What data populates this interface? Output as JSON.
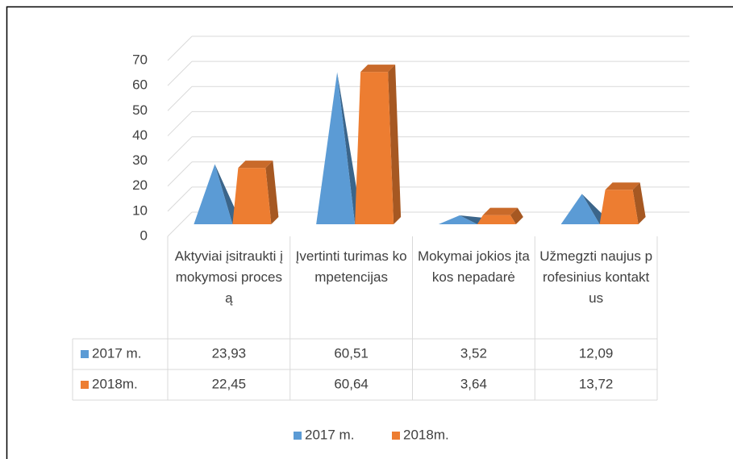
{
  "chart_data": {
    "type": "pyramid",
    "categories": [
      "Aktyviai įsitraukti į mokymosi procesą",
      "Įvertinti turimas kompetencijas",
      "Mokymai jokios įtakos nepadarė",
      "Užmegzti naujus profesinius kontaktus"
    ],
    "series": [
      {
        "name": "2017 m.",
        "color": "#5b9bd5",
        "values": [
          23.93,
          60.51,
          3.52,
          12.09
        ],
        "value_labels": [
          "23,93",
          "60,51",
          "3,52",
          "12,09"
        ]
      },
      {
        "name": "2018m.",
        "color": "#ed7d31",
        "values": [
          22.45,
          60.64,
          3.64,
          13.72
        ],
        "value_labels": [
          "22,45",
          "60,64",
          "3,64",
          "13,72"
        ]
      }
    ],
    "ylim": [
      0,
      70
    ],
    "yticks": [
      0,
      10,
      20,
      30,
      40,
      50,
      60,
      70
    ],
    "grid": true,
    "legend": "bottom",
    "data_table": true
  }
}
